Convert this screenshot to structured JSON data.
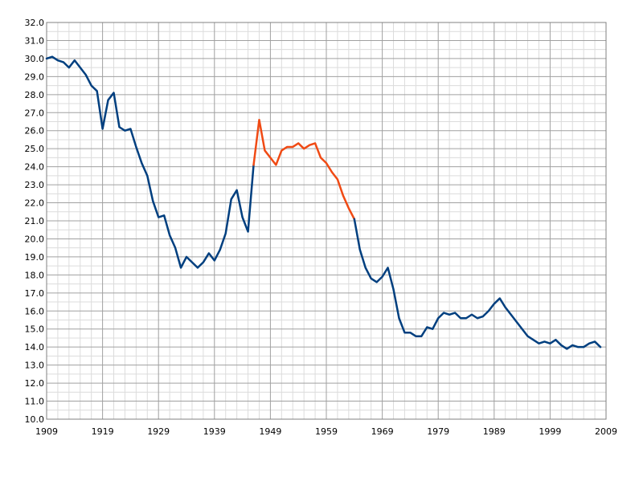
{
  "chart_data": {
    "type": "line",
    "title": "",
    "xlabel": "",
    "ylabel": "",
    "xlim": [
      1909,
      2009
    ],
    "ylim": [
      10.0,
      32.0
    ],
    "x_ticks": [
      "1909",
      "1919",
      "1929",
      "1939",
      "1949",
      "1959",
      "1969",
      "1979",
      "1989",
      "1999",
      "2009"
    ],
    "y_ticks": [
      "10.0",
      "11.0",
      "12.0",
      "13.0",
      "14.0",
      "15.0",
      "16.0",
      "17.0",
      "18.0",
      "19.0",
      "20.0",
      "21.0",
      "22.0",
      "23.0",
      "24.0",
      "25.0",
      "26.0",
      "27.0",
      "28.0",
      "29.0",
      "30.0",
      "31.0",
      "32.0"
    ],
    "grid": true,
    "colors": {
      "normal": "#003f7f",
      "highlight": "#f04a14",
      "major_grid": "#a0a0a0",
      "minor_grid": "#dcdcdc"
    },
    "series": [
      {
        "color_key": "normal",
        "x": [
          1909,
          1910,
          1911,
          1912,
          1913,
          1914,
          1915,
          1916,
          1917,
          1918,
          1919,
          1920,
          1921,
          1922,
          1923,
          1924,
          1925,
          1926,
          1927,
          1928,
          1929,
          1930,
          1931,
          1932,
          1933,
          1934,
          1935,
          1936,
          1937,
          1938,
          1939,
          1940,
          1941,
          1942,
          1943,
          1944,
          1945,
          1946
        ],
        "y": [
          30.0,
          30.1,
          29.9,
          29.8,
          29.5,
          29.9,
          29.5,
          29.1,
          28.5,
          28.2,
          26.1,
          27.7,
          28.1,
          26.2,
          26.0,
          26.1,
          25.1,
          24.2,
          23.5,
          22.1,
          21.2,
          21.3,
          20.2,
          19.5,
          18.4,
          19.0,
          18.7,
          18.4,
          18.7,
          19.2,
          18.8,
          19.4,
          20.3,
          22.2,
          22.7,
          21.2,
          20.4,
          24.1
        ]
      },
      {
        "color_key": "highlight",
        "x": [
          1946,
          1947,
          1948,
          1949,
          1950,
          1951,
          1952,
          1953,
          1954,
          1955,
          1956,
          1957,
          1958,
          1959,
          1960,
          1961,
          1962,
          1963,
          1964
        ],
        "y": [
          24.1,
          26.6,
          24.9,
          24.5,
          24.1,
          24.9,
          25.1,
          25.1,
          25.3,
          25.0,
          25.2,
          25.3,
          24.5,
          24.2,
          23.7,
          23.3,
          22.4,
          21.7,
          21.1
        ]
      },
      {
        "color_key": "normal",
        "x": [
          1964,
          1965,
          1966,
          1967,
          1968,
          1969,
          1970,
          1971,
          1972,
          1973,
          1974,
          1975,
          1976,
          1977,
          1978,
          1979,
          1980,
          1981,
          1982,
          1983,
          1984,
          1985,
          1986,
          1987,
          1988,
          1989,
          1990,
          1991,
          1992,
          1993,
          1994,
          1995,
          1996,
          1997,
          1998,
          1999,
          2000,
          2001,
          2002,
          2003,
          2004,
          2005,
          2006,
          2007,
          2008
        ],
        "y": [
          21.1,
          19.4,
          18.4,
          17.8,
          17.6,
          17.9,
          18.4,
          17.2,
          15.6,
          14.8,
          14.8,
          14.6,
          14.6,
          15.1,
          15.0,
          15.6,
          15.9,
          15.8,
          15.9,
          15.6,
          15.6,
          15.8,
          15.6,
          15.7,
          16.0,
          16.4,
          16.7,
          16.2,
          15.8,
          15.4,
          15.0,
          14.6,
          14.4,
          14.2,
          14.3,
          14.2,
          14.4,
          14.1,
          13.9,
          14.1,
          14.0,
          14.0,
          14.2,
          14.3,
          14.0
        ]
      }
    ]
  }
}
